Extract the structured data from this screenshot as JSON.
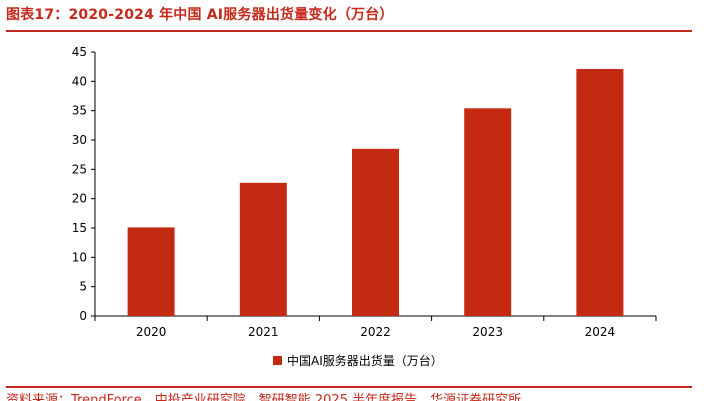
{
  "header": {
    "figure_title": "图表17：2020-2024 年中国 AI服务器出货量变化（万台）"
  },
  "footer": {
    "source_text": "资料来源：TrendForce，中投产业研究院，智研智能 2025 半年度报告，华源证券研究所"
  },
  "colors": {
    "accent": "#c4291c",
    "bar": "#c42a12"
  },
  "chart_data": {
    "type": "bar",
    "title": "",
    "xlabel": "",
    "ylabel": "",
    "categories": [
      "2020",
      "2021",
      "2022",
      "2023",
      "2024"
    ],
    "series": [
      {
        "name": "中国AI服务器出货量（万台）",
        "values": [
          15.1,
          22.7,
          28.5,
          35.4,
          42.1
        ]
      }
    ],
    "ylim": [
      0,
      45
    ],
    "yticks": [
      0,
      5,
      10,
      15,
      20,
      25,
      30,
      35,
      40,
      45
    ],
    "grid": false,
    "legend_position": "bottom"
  }
}
